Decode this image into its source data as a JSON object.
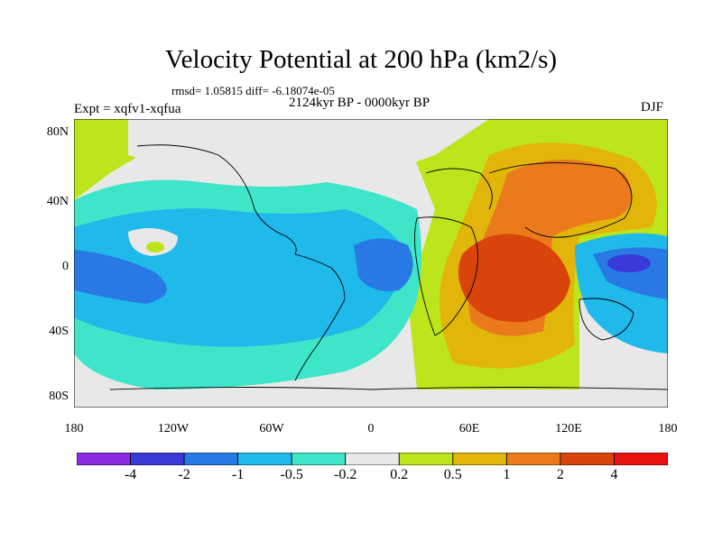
{
  "title": "Velocity Potential at 200 hPa (km2/s)",
  "stats_text": "rmsd= 1.05815 diff= -6.18074e-05",
  "period_text": "2124kyr BP - 0000kyr BP",
  "experiment_label": "Expt = xqfv1-xqfua",
  "season": "DJF",
  "lat_labels": [
    "80N",
    "40N",
    "0",
    "40S",
    "80S"
  ],
  "lon_labels": [
    "180",
    "120W",
    "60W",
    "0",
    "60E",
    "120E",
    "180"
  ],
  "colorbar": {
    "labels": [
      "-4",
      "-2",
      "-1",
      "-0.5",
      "-0.2",
      "0.2",
      "0.5",
      "1",
      "2",
      "4"
    ],
    "colors": [
      "#8a2be2",
      "#3a3ad8",
      "#2979e4",
      "#1fb9ea",
      "#3ee5c8",
      "#e8e8e8",
      "#bde51c",
      "#e2b50a",
      "#ea7a1c",
      "#d9440a",
      "#e8120f"
    ]
  }
}
